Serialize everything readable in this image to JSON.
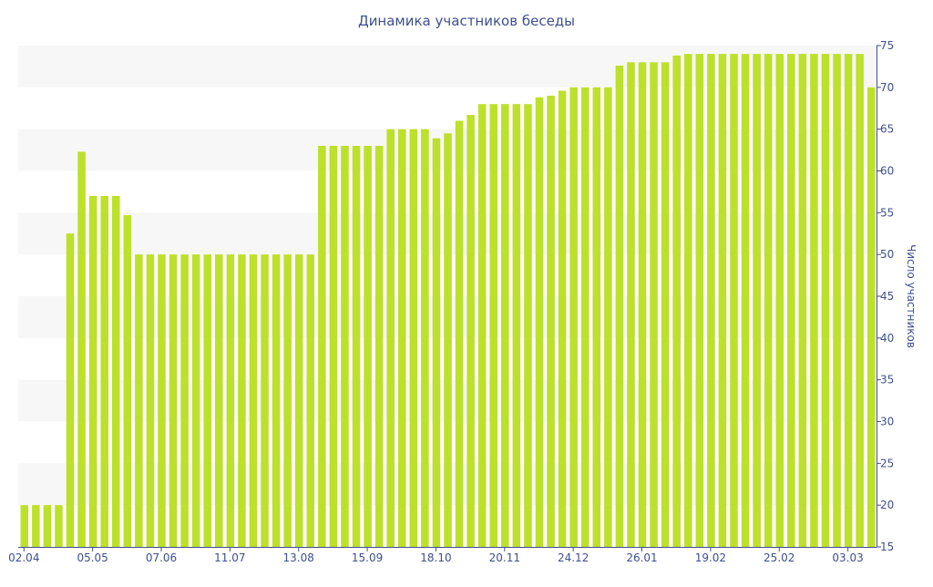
{
  "chart_data": {
    "type": "bar",
    "title": "Динамика участников беседы",
    "xlabel": "",
    "ylabel": "Число участников",
    "ylim": [
      15,
      75
    ],
    "yticks": [
      15,
      20,
      25,
      30,
      35,
      40,
      45,
      50,
      55,
      60,
      65,
      70,
      75
    ],
    "y_axis_position": "right",
    "grid": "alternating horizontal bands",
    "legend": "none",
    "tick_labels_x": [
      {
        "label": "02.04",
        "index": 0
      },
      {
        "label": "05.05",
        "index": 6
      },
      {
        "label": "07.06",
        "index": 12
      },
      {
        "label": "11.07",
        "index": 18
      },
      {
        "label": "13.08",
        "index": 24
      },
      {
        "label": "15.09",
        "index": 30
      },
      {
        "label": "18.10",
        "index": 36
      },
      {
        "label": "20.11",
        "index": 42
      },
      {
        "label": "24.12",
        "index": 48
      },
      {
        "label": "26.01",
        "index": 54
      },
      {
        "label": "19.02",
        "index": 60
      },
      {
        "label": "25.02",
        "index": 66
      },
      {
        "label": "03.03",
        "index": 72
      }
    ],
    "values": [
      20,
      20,
      20,
      20,
      52.5,
      62.3,
      57,
      57,
      57,
      54.7,
      50,
      50,
      50,
      50,
      50,
      50,
      50,
      50,
      50,
      50,
      50,
      50,
      50,
      50,
      50,
      50,
      63,
      63,
      63,
      63,
      63,
      63,
      65,
      65,
      65,
      65,
      63.9,
      64.5,
      66,
      66.7,
      68,
      68,
      68,
      68,
      68,
      68.8,
      69,
      69.6,
      70,
      70,
      70,
      70,
      72.6,
      73,
      73,
      73,
      73,
      73.8,
      74,
      74,
      74,
      74,
      74,
      74,
      74,
      74,
      74,
      74,
      74,
      74,
      74,
      74,
      74,
      74,
      70
    ],
    "colors": {
      "bar": "#bde02b",
      "text": "#3d4f91",
      "band": "#f7f7f7",
      "axis": "#3d4f91"
    }
  }
}
